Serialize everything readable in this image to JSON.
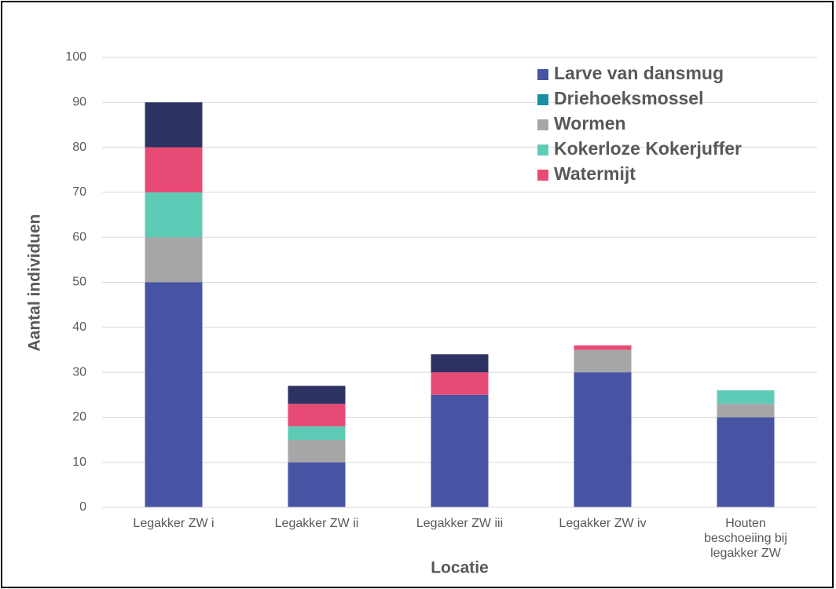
{
  "chart_data": {
    "type": "stacked_bar",
    "y_label": "Aantal individuen",
    "x_label": "Locatie",
    "categories": [
      "Legakker ZW i",
      "Legakker ZW ii",
      "Legakker ZW iii",
      "Legakker ZW iv",
      "Houten beschoeiing bij legakker ZW"
    ],
    "series": [
      {
        "name": "Larve van dansmug",
        "color": "#4753a3",
        "values": [
          50,
          10,
          25,
          30,
          20
        ]
      },
      {
        "name": "Driehoeksmossel",
        "color": "#168fa3",
        "values": [
          0,
          0,
          0,
          0,
          0
        ]
      },
      {
        "name": "Wormen",
        "color": "#a6a6a6",
        "values": [
          10,
          5,
          0,
          5,
          3
        ]
      },
      {
        "name": "Kokerloze Kokerjuffer",
        "color": "#5ecbb6",
        "values": [
          10,
          3,
          0,
          0,
          3
        ]
      },
      {
        "name": "Watermijt",
        "color": "#e84a76",
        "values": [
          10,
          5,
          5,
          1,
          0
        ]
      },
      {
        "color": "#2c3363",
        "values": [
          10,
          4,
          4,
          0,
          0
        ]
      }
    ],
    "ylim": [
      0,
      100
    ],
    "yticks": [
      0,
      10,
      20,
      30,
      40,
      50,
      60,
      70,
      80,
      90,
      100
    ],
    "grid": true,
    "legend": "top-right"
  }
}
